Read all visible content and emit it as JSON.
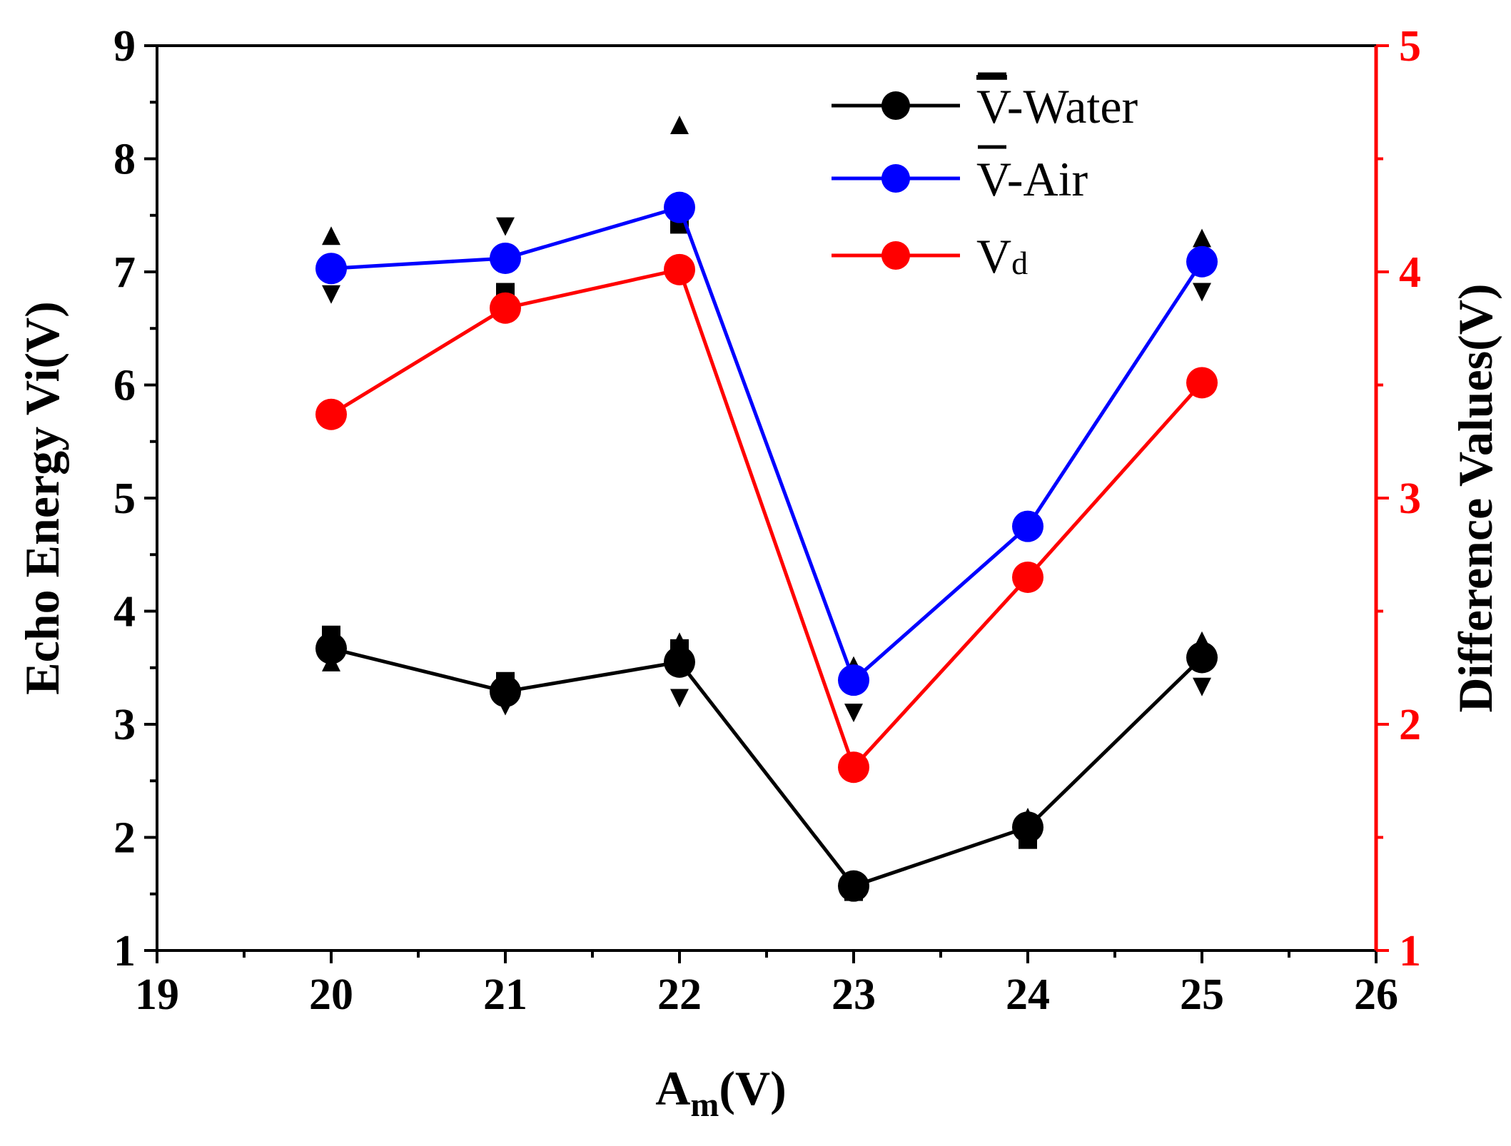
{
  "chart_data": {
    "type": "line",
    "title": "",
    "xlabel": "A",
    "xlabel_sub": "m",
    "xlabel_suffix": "(V)",
    "ylabel": "Echo Energy Vi(V)",
    "y2label": "Difference Values(V)",
    "xlim": [
      19,
      26
    ],
    "ylim": [
      1,
      9
    ],
    "y2lim": [
      1,
      5
    ],
    "x_ticks": [
      "19",
      "20",
      "21",
      "22",
      "23",
      "24",
      "25",
      "26"
    ],
    "y_ticks": [
      "1",
      "2",
      "3",
      "4",
      "5",
      "6",
      "7",
      "8",
      "9"
    ],
    "y2_ticks": [
      "1",
      "2",
      "3",
      "4",
      "5"
    ],
    "x": [
      20,
      21,
      22,
      23,
      24,
      25
    ],
    "series": [
      {
        "name": "V-Water",
        "axis": "left",
        "color": "#000000",
        "values": [
          3.67,
          3.29,
          3.55,
          1.57,
          2.09,
          3.59
        ]
      },
      {
        "name": "V-Air",
        "axis": "left",
        "color": "#0000ff",
        "values": [
          7.03,
          7.12,
          7.57,
          3.39,
          4.75,
          7.09
        ]
      },
      {
        "name": "Vd",
        "axis": "right",
        "color": "#ff0000",
        "values": [
          3.37,
          3.84,
          4.01,
          1.81,
          2.65,
          3.51
        ]
      }
    ],
    "legend": {
      "position": "top-right",
      "entries": [
        {
          "text": "V-Water",
          "overline_char": "V",
          "rest": "-Water",
          "color": "#000000"
        },
        {
          "text": "V-Air",
          "overline_char": "V",
          "rest": "-Air",
          "color": "#0000ff"
        },
        {
          "text": "Vd",
          "main": "V",
          "sub": "d",
          "color": "#ff0000"
        }
      ]
    },
    "raw_markers": {
      "color": "#000000",
      "points": [
        {
          "x": 20,
          "y": 7.32,
          "shape": "triangle-up"
        },
        {
          "x": 20,
          "y": 6.8,
          "shape": "triangle-down"
        },
        {
          "x": 20,
          "y": 3.79,
          "shape": "square"
        },
        {
          "x": 20,
          "y": 3.55,
          "shape": "triangle-up"
        },
        {
          "x": 21,
          "y": 7.4,
          "shape": "triangle-down"
        },
        {
          "x": 21,
          "y": 6.82,
          "shape": "square"
        },
        {
          "x": 21,
          "y": 3.38,
          "shape": "square"
        },
        {
          "x": 21,
          "y": 3.16,
          "shape": "triangle-down"
        },
        {
          "x": 22,
          "y": 8.3,
          "shape": "triangle-up"
        },
        {
          "x": 22,
          "y": 7.42,
          "shape": "square"
        },
        {
          "x": 22,
          "y": 3.73,
          "shape": "triangle-up"
        },
        {
          "x": 22,
          "y": 3.67,
          "shape": "square"
        },
        {
          "x": 22,
          "y": 3.23,
          "shape": "triangle-down"
        },
        {
          "x": 23,
          "y": 3.52,
          "shape": "triangle-up"
        },
        {
          "x": 23,
          "y": 3.1,
          "shape": "triangle-down"
        },
        {
          "x": 23,
          "y": 1.52,
          "shape": "square"
        },
        {
          "x": 23,
          "y": 1.6,
          "shape": "triangle-up"
        },
        {
          "x": 24,
          "y": 4.8,
          "shape": "triangle-up"
        },
        {
          "x": 24,
          "y": 2.18,
          "shape": "triangle-up"
        },
        {
          "x": 24,
          "y": 1.98,
          "shape": "square"
        },
        {
          "x": 25,
          "y": 7.3,
          "shape": "triangle-up"
        },
        {
          "x": 25,
          "y": 6.82,
          "shape": "triangle-down"
        },
        {
          "x": 25,
          "y": 3.74,
          "shape": "triangle-up"
        },
        {
          "x": 25,
          "y": 3.33,
          "shape": "triangle-down"
        }
      ]
    },
    "grid": false
  }
}
